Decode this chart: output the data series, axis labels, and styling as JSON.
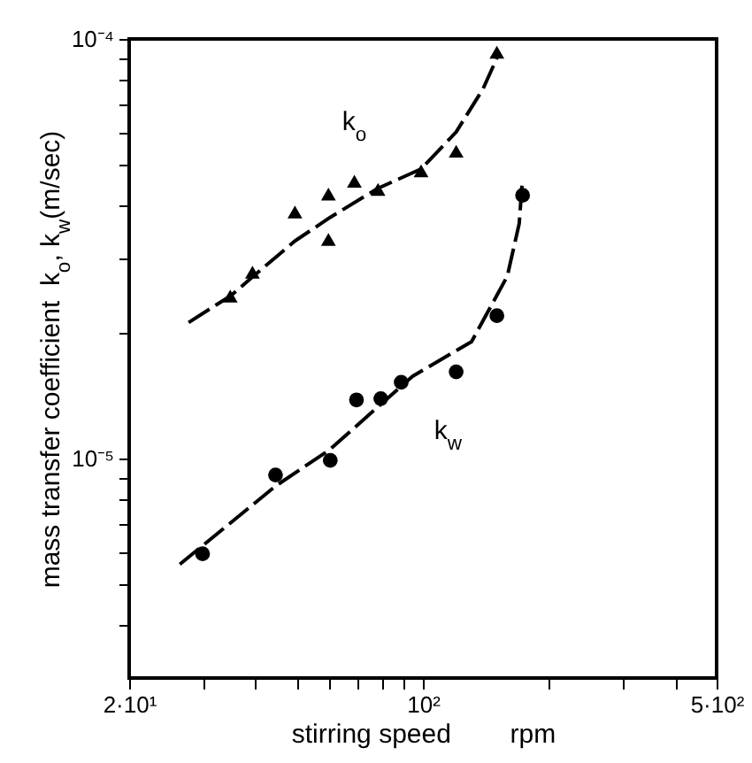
{
  "chart_data": {
    "type": "scatter",
    "xlabel": "stirring speed        rpm",
    "ylabel": "mass transfer coefficient  k$_{o}$, k$_{w}$(m/sec)",
    "log": "xy",
    "xlim": [
      20,
      500
    ],
    "ylim": [
      3e-06,
      0.0001
    ],
    "xticks": [
      {
        "value": 20,
        "label": "2·10¹"
      },
      {
        "value": 30,
        "label": null
      },
      {
        "value": 40,
        "label": null
      },
      {
        "value": 50,
        "label": null
      },
      {
        "value": 60,
        "label": null
      },
      {
        "value": 70,
        "label": null
      },
      {
        "value": 80,
        "label": null
      },
      {
        "value": 90,
        "label": null
      },
      {
        "value": 100,
        "label": "10²"
      },
      {
        "value": 200,
        "label": null
      },
      {
        "value": 300,
        "label": null
      },
      {
        "value": 400,
        "label": null
      },
      {
        "value": 500,
        "label": "5·10²"
      }
    ],
    "yticks": [
      {
        "value": 4e-06,
        "label": null
      },
      {
        "value": 5e-06,
        "label": null
      },
      {
        "value": 6e-06,
        "label": null
      },
      {
        "value": 7e-06,
        "label": null
      },
      {
        "value": 8e-06,
        "label": null
      },
      {
        "value": 9e-06,
        "label": null
      },
      {
        "value": 1e-05,
        "label": "10⁻⁵"
      },
      {
        "value": 2e-05,
        "label": null
      },
      {
        "value": 3e-05,
        "label": null
      },
      {
        "value": 4e-05,
        "label": null
      },
      {
        "value": 5e-05,
        "label": null
      },
      {
        "value": 6e-05,
        "label": null
      },
      {
        "value": 7e-05,
        "label": null
      },
      {
        "value": 8e-05,
        "label": null
      },
      {
        "value": 9e-05,
        "label": null
      },
      {
        "value": 0.0001,
        "label": "10⁻⁴"
      }
    ],
    "grid": false,
    "line_style": "dashed",
    "series": [
      {
        "type": "line",
        "color": "#000000",
        "x": [
          27.7,
          35,
          40,
          49.6,
          60,
          78,
          99,
          120,
          139,
          150
        ],
        "values": [
          2.11e-05,
          2.45e-05,
          2.75e-05,
          3.3e-05,
          3.75e-05,
          4.4e-05,
          4.9e-05,
          6e-05,
          7.6e-05,
          9e-05
        ]
      },
      {
        "type": "line",
        "color": "#000000",
        "x": [
          26.4,
          44.6,
          60,
          94.4,
          130.6,
          158.8,
          169.5,
          172.5
        ],
        "values": [
          5.6e-06,
          8.6e-06,
          1.05e-05,
          1.57e-05,
          1.9e-05,
          2.72e-05,
          3.63e-05,
          4.62e-05
        ]
      },
      {
        "name": "k$_{o}$",
        "marker": "triangle",
        "color": "#000000",
        "x": [
          34.8,
          39.3,
          49.6,
          59.6,
          59.6,
          68.7,
          78.2,
          99,
          120,
          150
        ],
        "values": [
          2.44e-05,
          2.78e-05,
          3.87e-05,
          4.27e-05,
          3.33e-05,
          4.58e-05,
          4.38e-05,
          4.85e-05,
          5.4e-05,
          9.3e-05
        ]
      },
      {
        "name": "k$_{w}$",
        "marker": "circle",
        "color": "#000000",
        "x": [
          29.9,
          44.6,
          60.2,
          69.5,
          79.4,
          88.8,
          120,
          150,
          172.7
        ],
        "values": [
          5.93e-06,
          9.14e-06,
          9.9e-06,
          1.38e-05,
          1.39e-05,
          1.52e-05,
          1.61e-05,
          2.19e-05,
          4.24e-05
        ]
      }
    ]
  }
}
